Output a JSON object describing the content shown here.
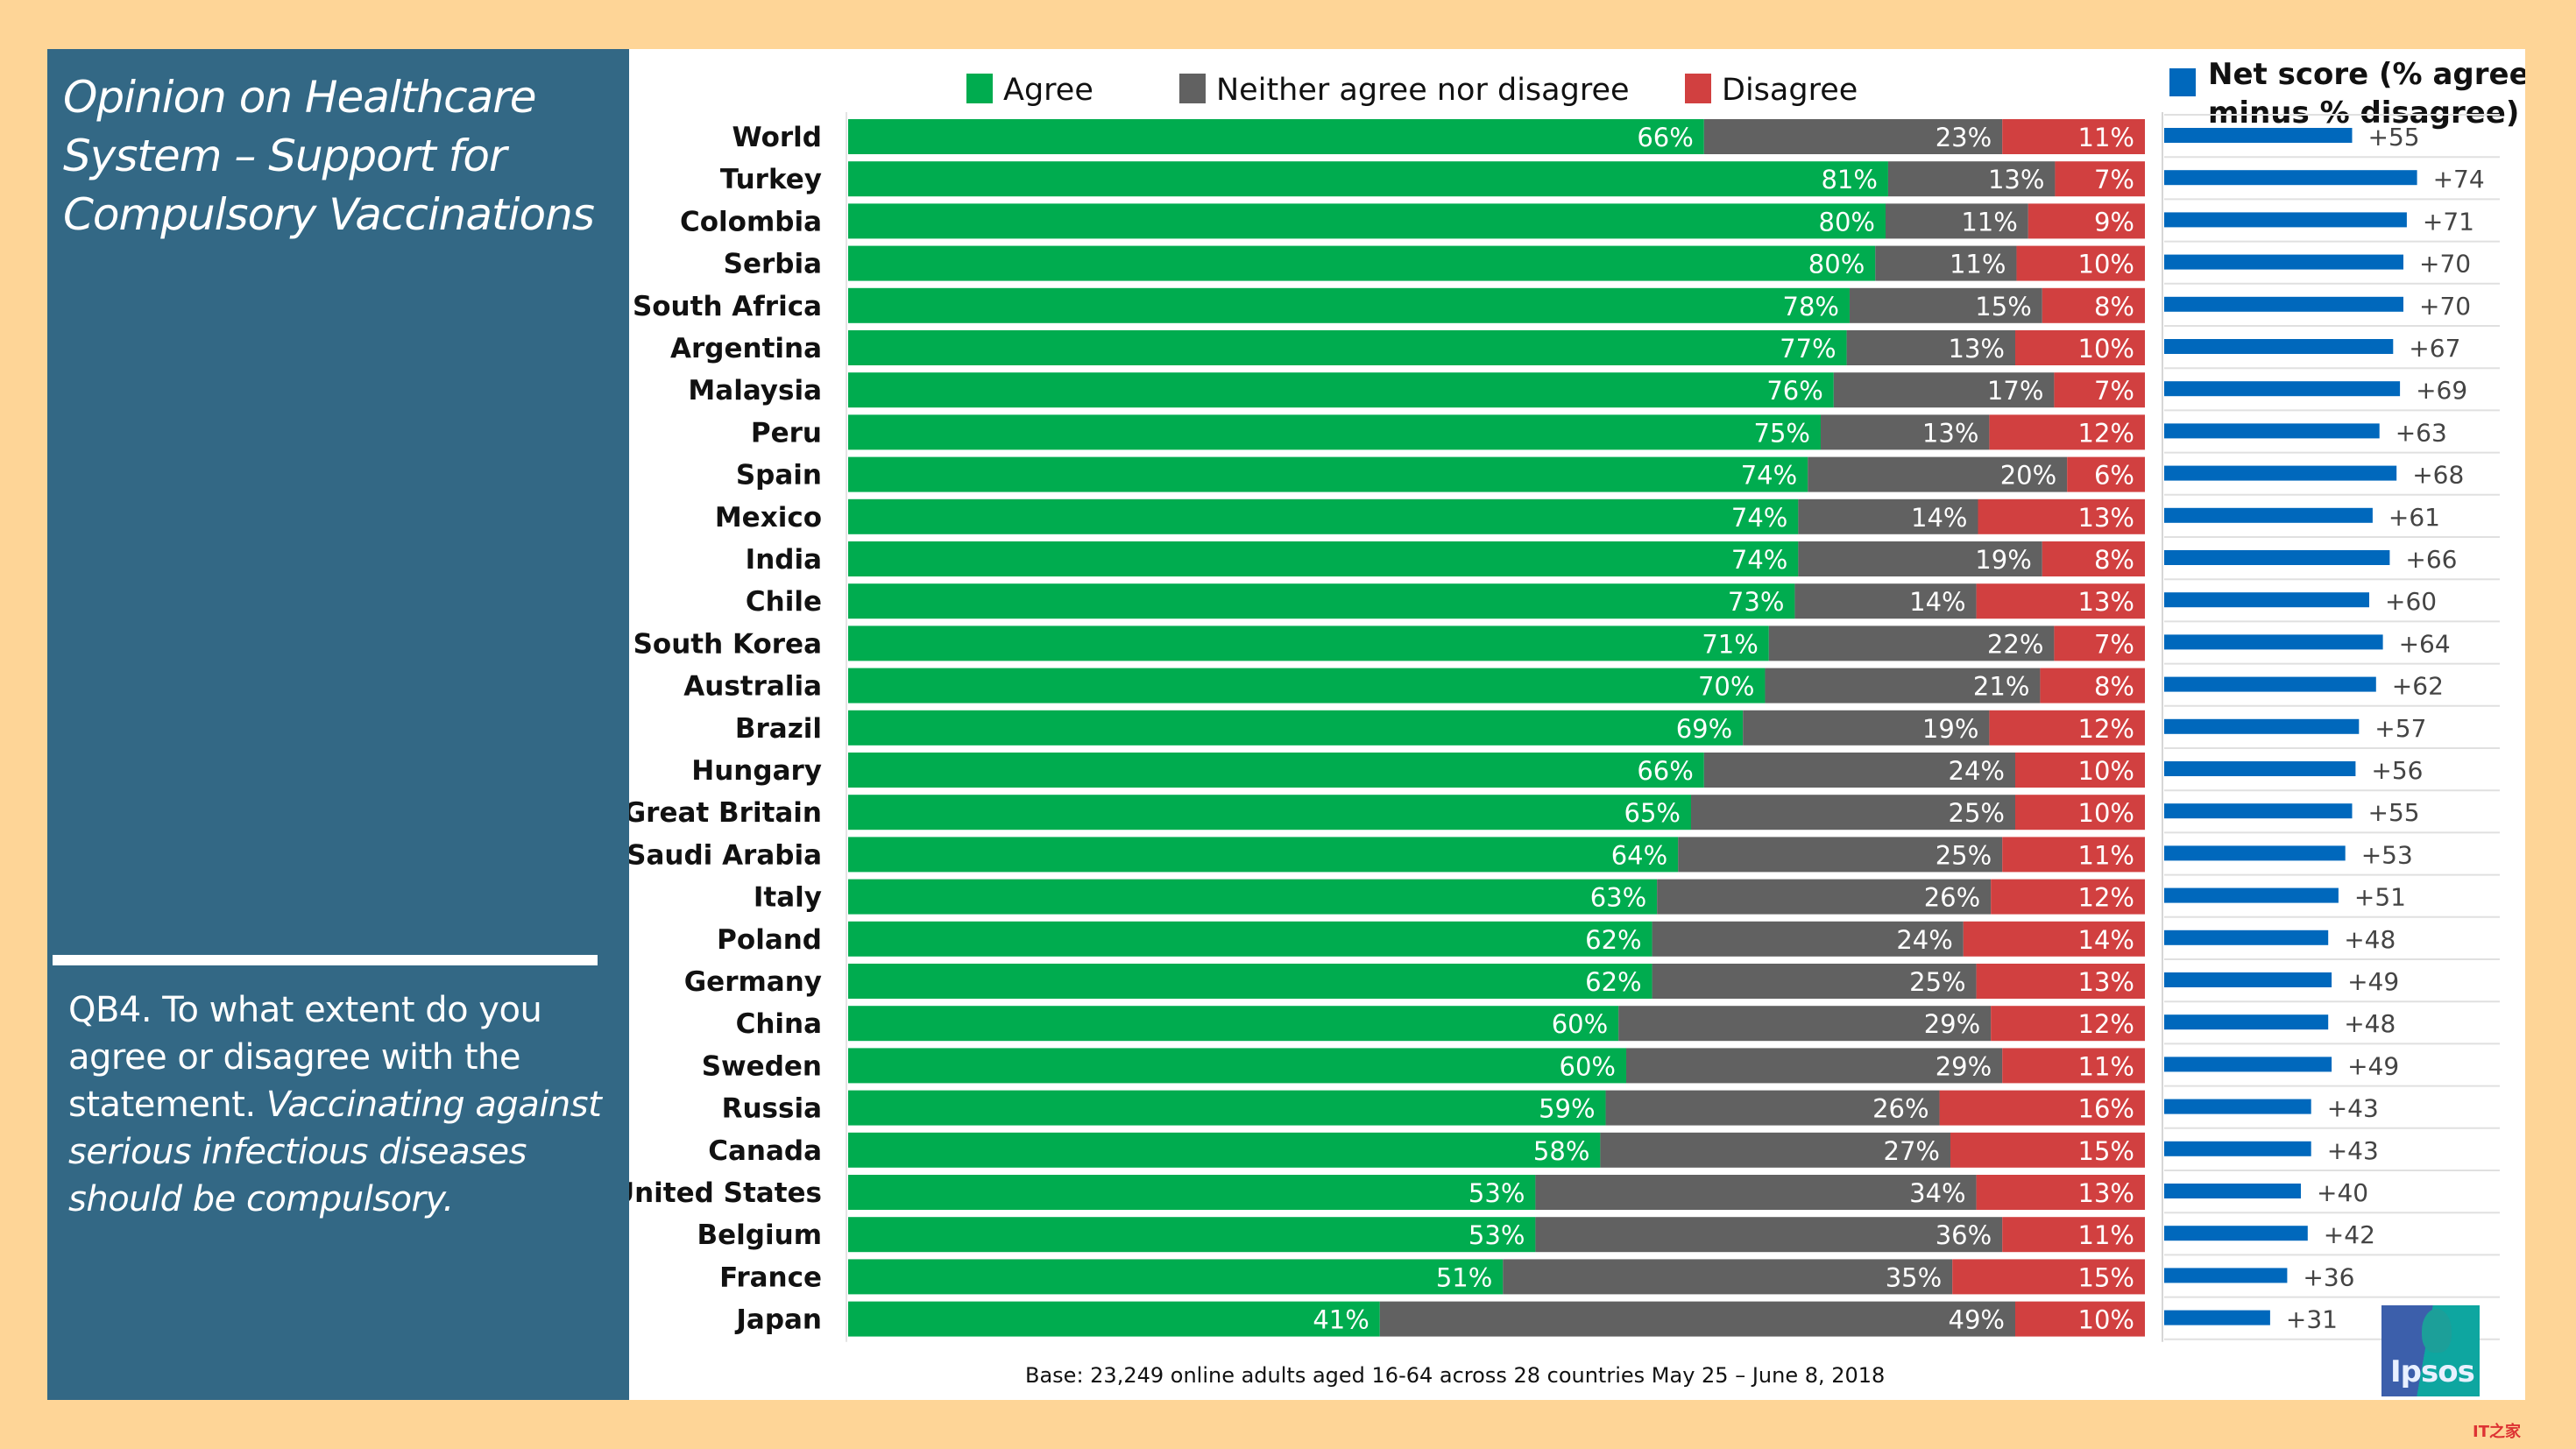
{
  "sidebar": {
    "title": "Opinion on Healthcare System – Support for Compulsory Vaccinations",
    "question_prefix": "QB4. To what extent do you agree or disagree with the statement.",
    "question_statement": "Vaccinating against serious infectious diseases should be compulsory."
  },
  "logo": {
    "text": "Ipsos"
  },
  "watermark": {
    "text": "IT之家"
  },
  "colors": {
    "agree": "#00ac4f",
    "neither": "#616161",
    "disagree": "#d14040",
    "net": "#0068bc",
    "panel": "#336885",
    "background": "#fed597"
  },
  "chart_data": [
    {
      "type": "bar",
      "stacked": true,
      "orientation": "horizontal",
      "title": "",
      "xlabel": "",
      "ylabel": "",
      "xlim": [
        0,
        100
      ],
      "legend": {
        "placement": "top",
        "entries": [
          "Agree",
          "Neither agree nor disagree",
          "Disagree"
        ]
      },
      "categories": [
        "World",
        "Turkey",
        "Colombia",
        "Serbia",
        "South Africa",
        "Argentina",
        "Malaysia",
        "Peru",
        "Spain",
        "Mexico",
        "India",
        "Chile",
        "South Korea",
        "Australia",
        "Brazil",
        "Hungary",
        "Great Britain",
        "Saudi Arabia",
        "Italy",
        "Poland",
        "Germany",
        "China",
        "Sweden",
        "Russia",
        "Canada",
        "United States",
        "Belgium",
        "France",
        "Japan"
      ],
      "series": [
        {
          "name": "Agree",
          "values": [
            66,
            81,
            80,
            80,
            78,
            77,
            76,
            75,
            74,
            74,
            74,
            73,
            71,
            70,
            69,
            66,
            65,
            64,
            63,
            62,
            62,
            60,
            60,
            59,
            58,
            53,
            53,
            51,
            41
          ]
        },
        {
          "name": "Neither agree nor disagree",
          "values": [
            23,
            13,
            11,
            11,
            15,
            13,
            17,
            13,
            20,
            14,
            19,
            14,
            22,
            21,
            19,
            24,
            25,
            25,
            26,
            24,
            25,
            29,
            29,
            26,
            27,
            34,
            36,
            35,
            49
          ]
        },
        {
          "name": "Disagree",
          "values": [
            11,
            7,
            9,
            10,
            8,
            10,
            7,
            12,
            6,
            13,
            8,
            13,
            7,
            8,
            12,
            10,
            10,
            11,
            12,
            14,
            13,
            12,
            11,
            16,
            15,
            13,
            11,
            15,
            10
          ]
        }
      ],
      "value_format": "{v}%",
      "footnote": "Base: 23,249 online adults aged 16-64 across 28 countries  May 25 – June 8, 2018"
    },
    {
      "type": "bar",
      "orientation": "horizontal",
      "title": "Net score (% agree minus % disagree)",
      "legend": {
        "placement": "top",
        "entries": [
          "Net score (% agree minus % disagree)"
        ]
      },
      "categories": [
        "World",
        "Turkey",
        "Colombia",
        "Serbia",
        "South Africa",
        "Argentina",
        "Malaysia",
        "Peru",
        "Spain",
        "Mexico",
        "India",
        "Chile",
        "South Korea",
        "Australia",
        "Brazil",
        "Hungary",
        "Great Britain",
        "Saudi Arabia",
        "Italy",
        "Poland",
        "Germany",
        "China",
        "Sweden",
        "Russia",
        "Canada",
        "United States",
        "Belgium",
        "France",
        "Japan"
      ],
      "values": [
        55,
        74,
        71,
        70,
        70,
        67,
        69,
        63,
        68,
        61,
        66,
        60,
        64,
        62,
        57,
        56,
        55,
        53,
        51,
        48,
        49,
        48,
        49,
        43,
        43,
        40,
        42,
        36,
        31
      ],
      "labels": [
        "+55",
        "+74",
        "+71",
        "+70",
        "+70",
        "+67",
        "+69",
        "+63",
        "+68",
        "+61",
        "+66",
        "+60",
        "+64",
        "+62",
        "+57",
        "+56",
        "+55",
        "+53",
        "+51",
        "+48",
        "+49",
        "+48",
        "+49",
        "+43",
        "+43",
        "+40",
        "+42",
        "+36",
        "+31"
      ],
      "xlim": [
        0,
        100
      ],
      "grid": true
    }
  ]
}
